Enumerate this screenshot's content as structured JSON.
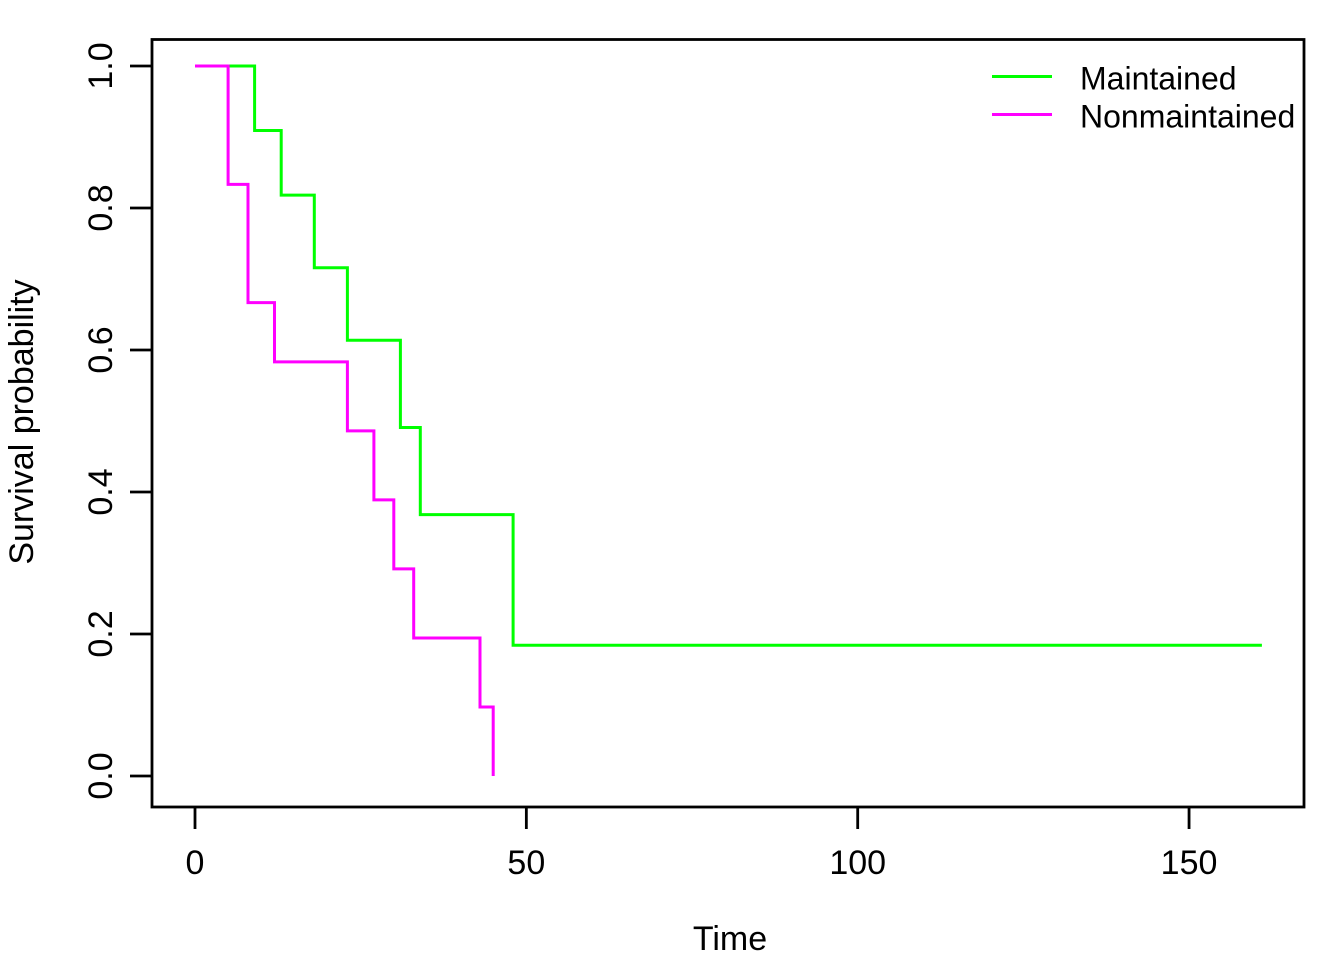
{
  "chart_data": {
    "type": "line",
    "variant": "kaplan-meier-step",
    "title": "",
    "xlabel": "Time",
    "ylabel": "Survival probability",
    "xlim": [
      0,
      161
    ],
    "ylim": [
      0.0,
      1.0
    ],
    "grid": false,
    "background_color": "#FFFFFF",
    "axis_color": "#000000",
    "x_ticks": [
      {
        "value": 0,
        "label": "0"
      },
      {
        "value": 50,
        "label": "50"
      },
      {
        "value": 100,
        "label": "100"
      },
      {
        "value": 150,
        "label": "150"
      }
    ],
    "y_ticks": [
      {
        "value": 0.0,
        "label": "0.0"
      },
      {
        "value": 0.2,
        "label": "0.2"
      },
      {
        "value": 0.4,
        "label": "0.4"
      },
      {
        "value": 0.6,
        "label": "0.6"
      },
      {
        "value": 0.8,
        "label": "0.8"
      },
      {
        "value": 1.0,
        "label": "1.0"
      }
    ],
    "legend": {
      "position": "top-right",
      "box": false
    },
    "series": [
      {
        "name": "Maintained",
        "color": "#00FF00",
        "points": [
          [
            0,
            1.0
          ],
          [
            9,
            0.9091
          ],
          [
            13,
            0.8182
          ],
          [
            18,
            0.7159
          ],
          [
            23,
            0.6136
          ],
          [
            31,
            0.4909
          ],
          [
            34,
            0.3682
          ],
          [
            48,
            0.1841
          ],
          [
            161,
            0.1841
          ]
        ]
      },
      {
        "name": "Nonmaintained",
        "color": "#FF00FF",
        "points": [
          [
            0,
            1.0
          ],
          [
            5,
            0.8333
          ],
          [
            8,
            0.6667
          ],
          [
            12,
            0.5833
          ],
          [
            23,
            0.4861
          ],
          [
            27,
            0.3889
          ],
          [
            30,
            0.2917
          ],
          [
            33,
            0.1944
          ],
          [
            43,
            0.0972
          ],
          [
            45,
            0.0
          ]
        ]
      }
    ]
  }
}
